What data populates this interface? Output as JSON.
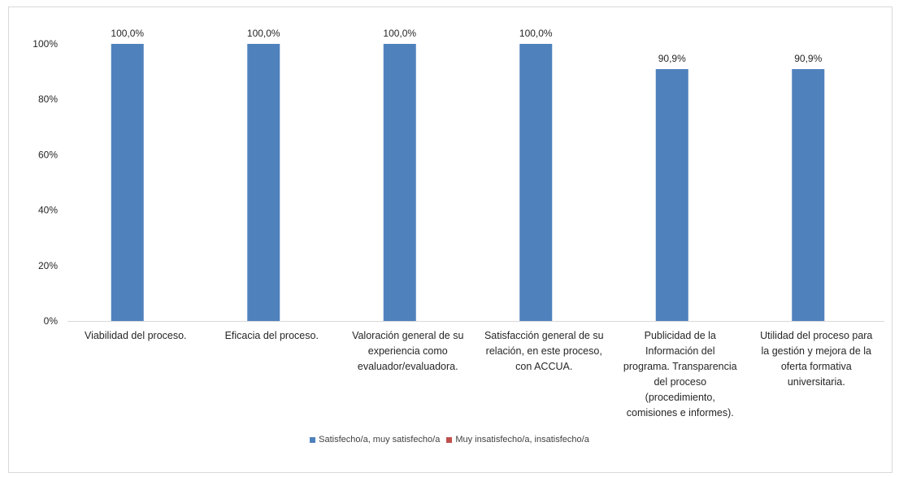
{
  "chart_data": {
    "type": "bar",
    "title": "",
    "xlabel": "",
    "ylabel": "",
    "ylim": [
      0,
      100
    ],
    "yticks": [
      "0%",
      "20%",
      "40%",
      "60%",
      "80%",
      "100%"
    ],
    "grid": false,
    "legend_position": "bottom",
    "categories": [
      [
        "Viabilidad del proceso."
      ],
      [
        "Eficacia del proceso."
      ],
      [
        "Valoración general de su",
        "experiencia como",
        "evaluador/evaluadora."
      ],
      [
        "Satisfacción general de su",
        "relación, en este proceso,",
        "con ACCUA."
      ],
      [
        "Publicidad de la",
        "Información del",
        "programa. Transparencia",
        "del proceso",
        "(procedimiento,",
        "comisiones e informes)."
      ],
      [
        "Utilidad del proceso para",
        "la gestión y mejora de la",
        "oferta formativa",
        "universitaria."
      ]
    ],
    "series": [
      {
        "name": "Satisfecho/a, muy satisfecho/a",
        "color": "#4f81bd",
        "values": [
          100.0,
          100.0,
          100.0,
          100.0,
          90.9,
          90.9
        ],
        "labels": [
          "100,0%",
          "100,0%",
          "100,0%",
          "100,0%",
          "90,9%",
          "90,9%"
        ]
      },
      {
        "name": "Muy insatisfecho/a, insatisfecho/a",
        "color": "#c0504d",
        "values": [
          0,
          0,
          0,
          0,
          0,
          0
        ],
        "labels": []
      }
    ]
  }
}
